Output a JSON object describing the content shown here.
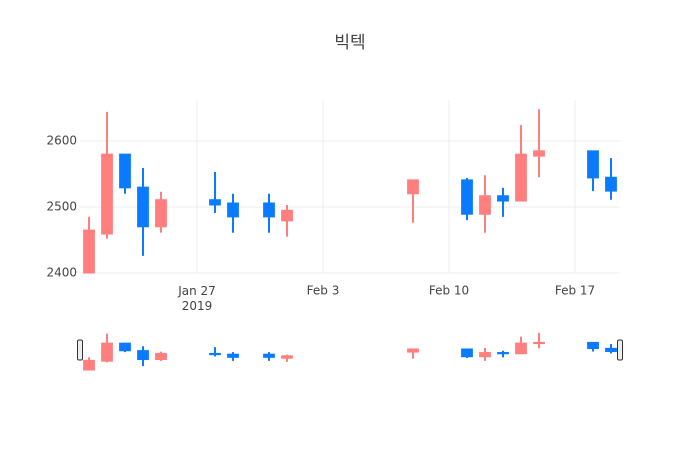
{
  "chart_data": {
    "type": "candlestick",
    "title": "빅텍",
    "x": [
      "2019-01-21",
      "2019-01-22",
      "2019-01-23",
      "2019-01-24",
      "2019-01-25",
      "2019-01-28",
      "2019-01-29",
      "2019-01-31",
      "2019-02-01",
      "2019-02-08",
      "2019-02-11",
      "2019-02-12",
      "2019-02-13",
      "2019-02-14",
      "2019-02-15",
      "2019-02-18",
      "2019-02-19"
    ],
    "open": [
      2400,
      2459,
      2580,
      2530,
      2470,
      2511,
      2506,
      2506,
      2479,
      2520,
      2541,
      2489,
      2517,
      2509,
      2577,
      2585,
      2545
    ],
    "high": [
      2485,
      2644,
      2580,
      2559,
      2523,
      2553,
      2520,
      2520,
      2503,
      2541,
      2544,
      2548,
      2529,
      2624,
      2648,
      2585,
      2574
    ],
    "low": [
      2400,
      2452,
      2520,
      2426,
      2461,
      2491,
      2461,
      2461,
      2455,
      2476,
      2480,
      2461,
      2485,
      2509,
      2545,
      2524,
      2511
    ],
    "close": [
      2465,
      2580,
      2529,
      2470,
      2511,
      2503,
      2485,
      2485,
      2495,
      2541,
      2489,
      2517,
      2509,
      2580,
      2585,
      2544,
      2524
    ],
    "increasing_color": "#ff7f7f",
    "decreasing_color": "#0a7bff",
    "xlim": [
      "2019-01-20T12:00",
      "2019-02-19T12:00"
    ],
    "ylim": [
      2400,
      2662
    ],
    "xticks": [
      {
        "value": "2019-01-27",
        "label": "Jan 27\n2019"
      },
      {
        "value": "2019-02-03",
        "label": "Feb 3"
      },
      {
        "value": "2019-02-10",
        "label": "Feb 10"
      },
      {
        "value": "2019-02-17",
        "label": "Feb 17"
      }
    ],
    "yticks": [
      2400,
      2500,
      2600
    ],
    "grid": true,
    "rangeslider": true
  }
}
